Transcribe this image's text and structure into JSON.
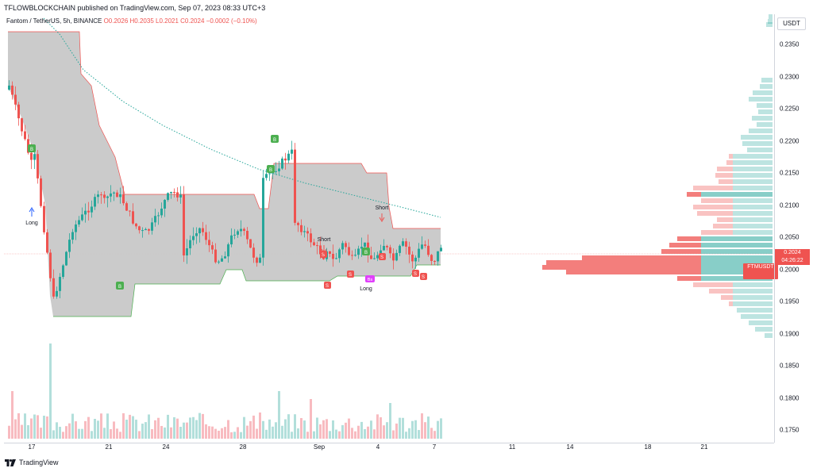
{
  "header": {
    "publish_line": "TFLOWBLOCKCHAIN published on TradingView.com, Sep 07, 2023 08:33 UTC+3",
    "symbol": "Fantom / TetherUS, 5h, BINANCE",
    "ohlc_o": "O0.2026",
    "ohlc_h": "H0.2035",
    "ohlc_l": "L0.2021",
    "ohlc_c": "C0.2024",
    "change": "−0.0002 (−0.10%)"
  },
  "price_axis": {
    "currency": "USDT",
    "ticks": [
      "0.2350",
      "0.2300",
      "0.2250",
      "0.2200",
      "0.2150",
      "0.2100",
      "0.2050",
      "0.2000",
      "0.1950",
      "0.1900",
      "0.1850",
      "0.1800",
      "0.1750"
    ]
  },
  "time_axis": {
    "ticks": [
      "17",
      "21",
      "24",
      "28",
      "Sep",
      "4",
      "7",
      "11",
      "14",
      "18",
      "21"
    ]
  },
  "last_price": {
    "symbol": "FTMUSDT",
    "value": "0.2024",
    "countdown": "04:26:22"
  },
  "annotations": {
    "long_label": "Long",
    "short_label": "Short",
    "buy_marker": "B",
    "sell_marker": "S",
    "buy_sell_marker": "Bs"
  },
  "footer": {
    "brand": "TradingView"
  },
  "colors": {
    "up": "#26a69a",
    "down": "#ef5350",
    "band_fill": "#c8c8c8",
    "marker_buy": "#4caf50",
    "marker_sell": "#ef5350",
    "dotted_line": "#26a69a",
    "long_arrow": "#2962ff"
  }
}
